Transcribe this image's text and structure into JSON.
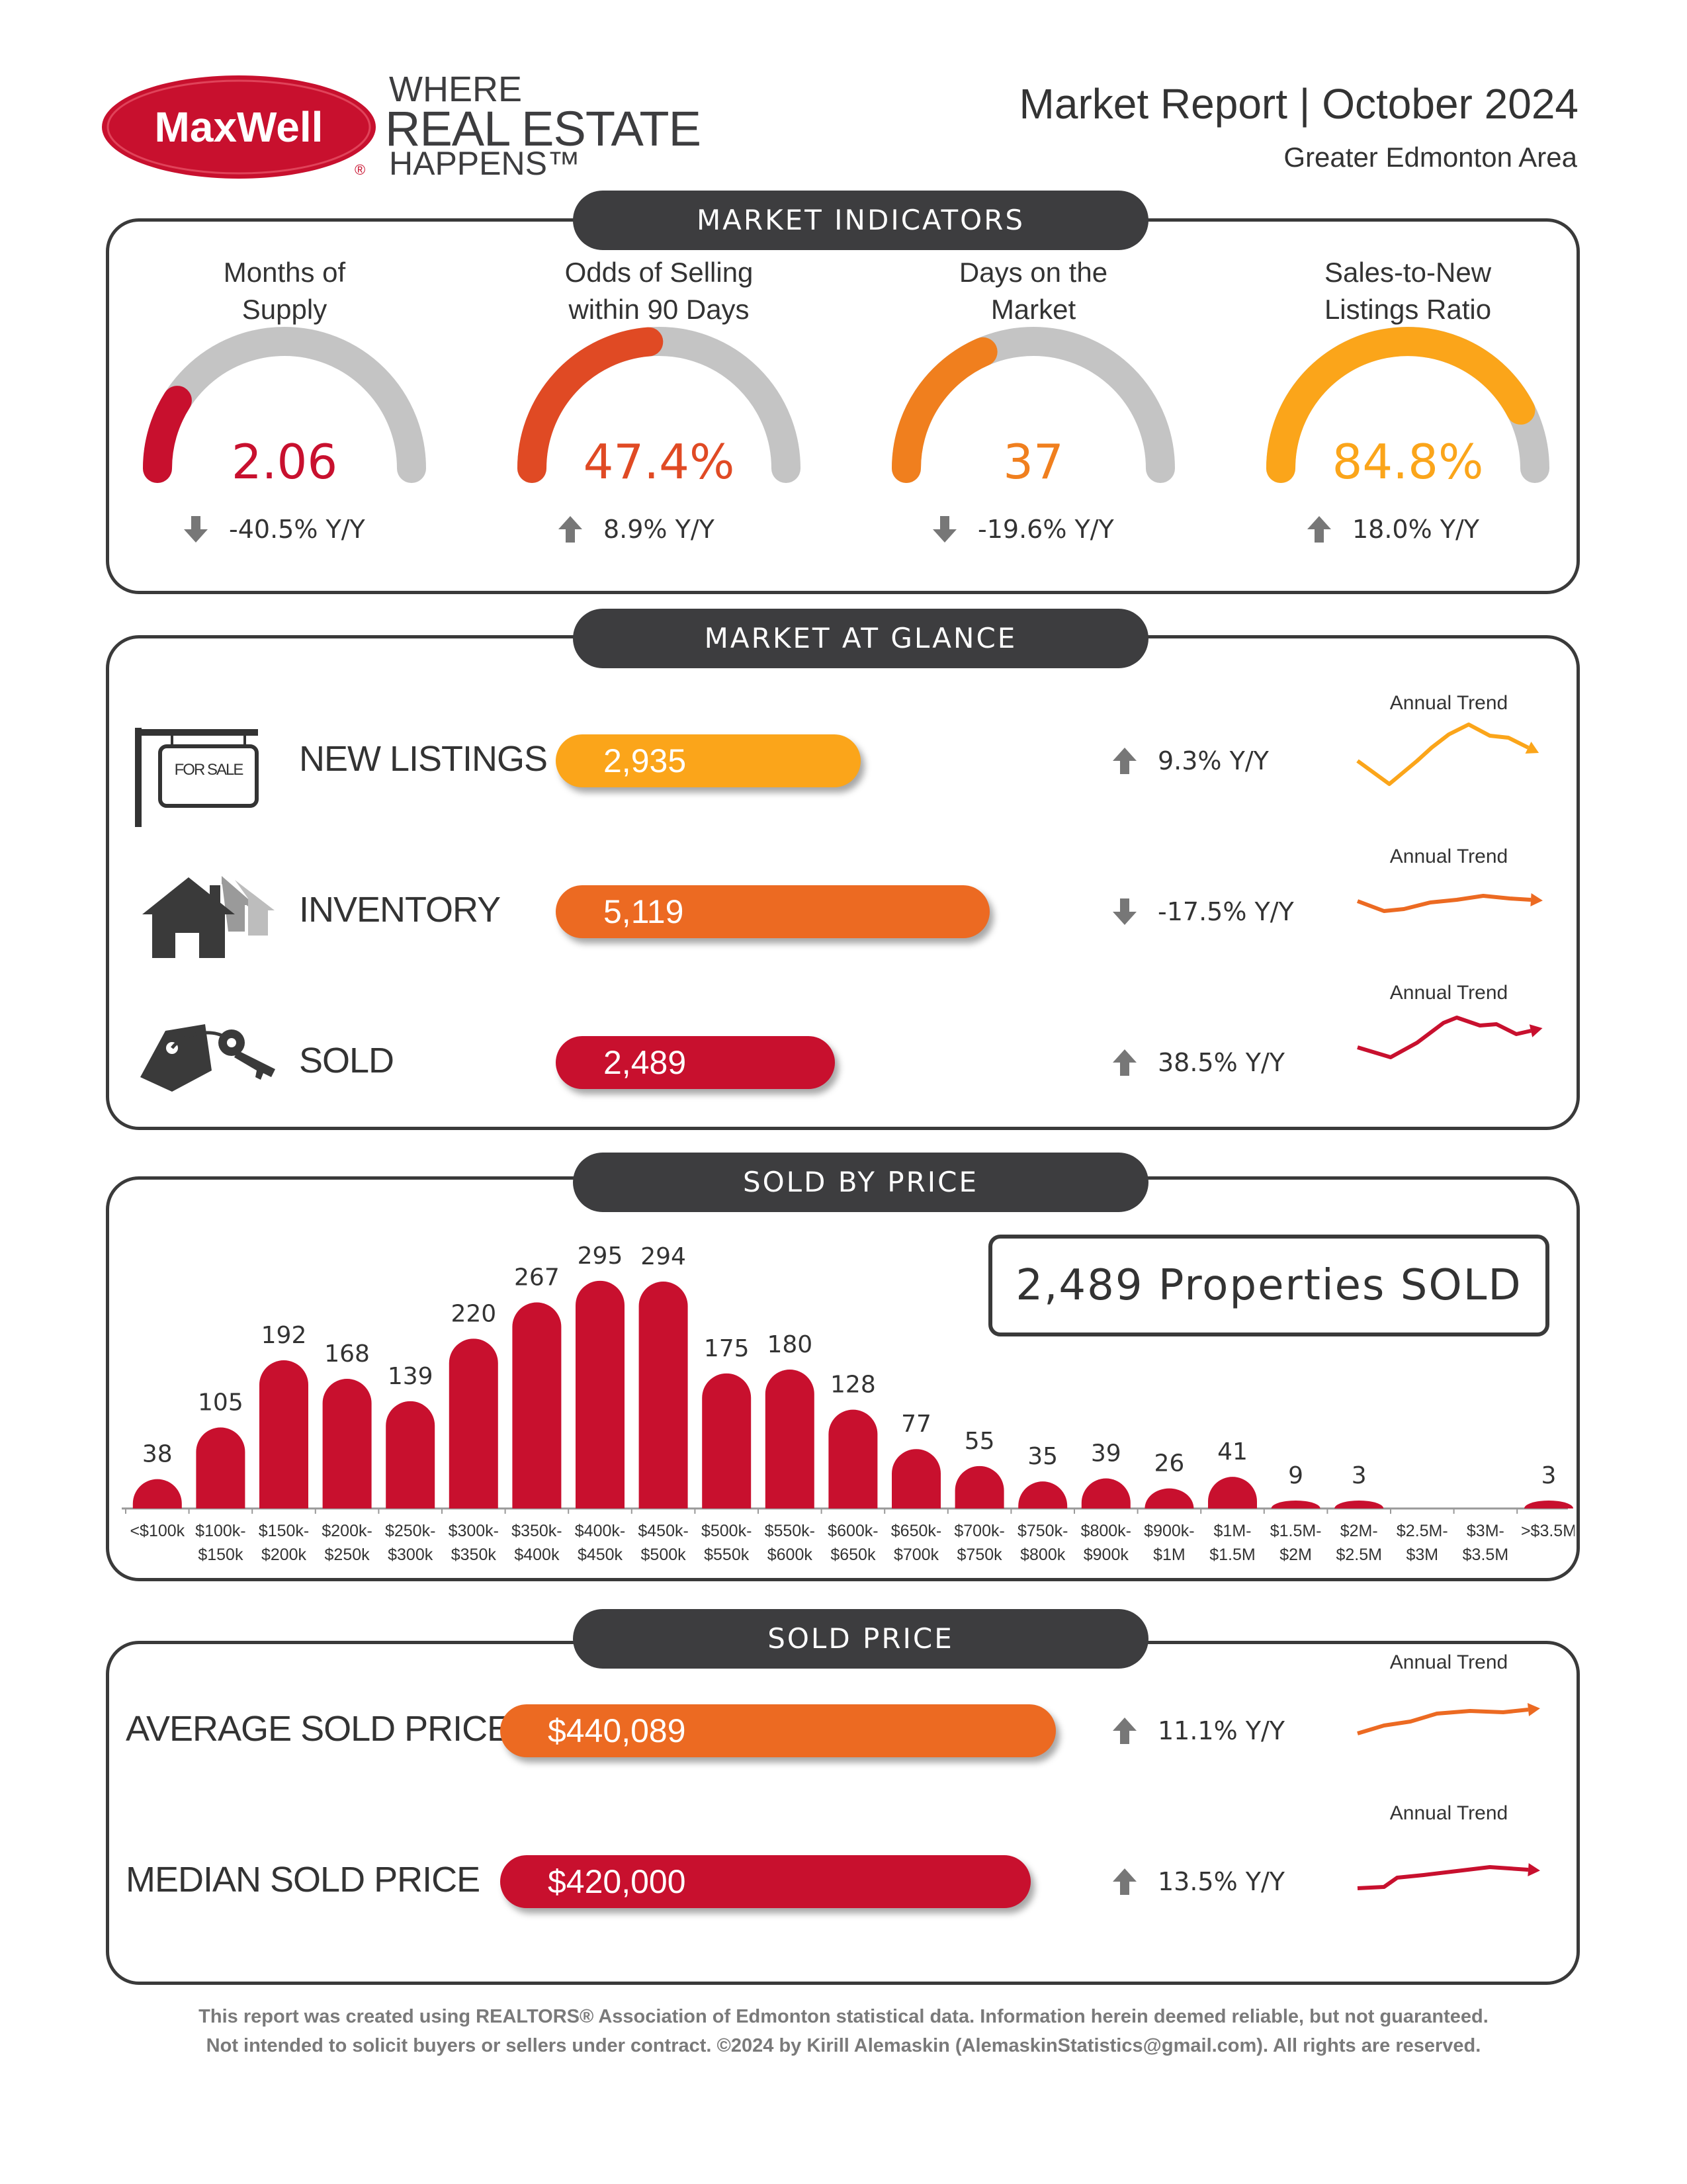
{
  "header": {
    "brand": "MaxWell",
    "tagline_1": "WHERE",
    "tagline_2": "REAL ESTATE",
    "tagline_3": "HAPPENS™",
    "title": "Market Report | October 2024",
    "subtitle": "Greater Edmonton Area"
  },
  "colors": {
    "red": "#c8102e",
    "orange_red": "#e04a24",
    "orange": "#f07f1e",
    "amber": "#fba51a",
    "gray_track": "#c4c4c4",
    "dark": "#3d3d3f"
  },
  "indicators": {
    "title": "MARKET INDICATORS",
    "items": [
      {
        "title_1": "Months of",
        "title_2": "Supply",
        "value": "2.06",
        "fill": 0.18,
        "change": "-40.5% Y/Y",
        "direction": "down",
        "color": "#c8102e"
      },
      {
        "title_1": "Odds of Selling",
        "title_2": "within 90 Days",
        "value": "47.4%",
        "fill": 0.474,
        "change": "8.9% Y/Y",
        "direction": "up",
        "color": "#e04a24"
      },
      {
        "title_1": "Days on the",
        "title_2": "Market",
        "value": "37",
        "fill": 0.37,
        "change": "-19.6% Y/Y",
        "direction": "down",
        "color": "#f07f1e"
      },
      {
        "title_1": "Sales-to-New",
        "title_2": "Listings Ratio",
        "value": "84.8%",
        "fill": 0.848,
        "change": "18.0% Y/Y",
        "direction": "up",
        "color": "#fba51a"
      }
    ]
  },
  "glance": {
    "title": "MARKET AT GLANCE",
    "trend_label": "Annual Trend",
    "for_sale_sign": "FOR SALE",
    "rows": [
      {
        "label": "NEW LISTINGS",
        "value": "2,935",
        "amount": 2935,
        "change": "9.3% Y/Y",
        "direction": "up",
        "color": "#fba51a",
        "icon": "for-sale-sign-icon"
      },
      {
        "label": "INVENTORY",
        "value": "5,119",
        "amount": 5119,
        "change": "-17.5% Y/Y",
        "direction": "down",
        "color": "#ec6a22",
        "icon": "houses-icon"
      },
      {
        "label": "SOLD",
        "value": "2,489",
        "amount": 2489,
        "change": "38.5% Y/Y",
        "direction": "up",
        "color": "#c8102e",
        "icon": "house-keys-icon"
      }
    ]
  },
  "sold_by_price": {
    "title": "SOLD BY PRICE",
    "total_box": "2,489 Properties SOLD"
  },
  "chart_data": {
    "type": "bar",
    "categories": [
      "<$100k",
      "$100k-$150k",
      "$150k-$200k",
      "$200k-$250k",
      "$250k-$300k",
      "$300k-$350k",
      "$350k-$400k",
      "$400k-$450k",
      "$450k-$500k",
      "$500k-$550k",
      "$550k-$600k",
      "$600k-$650k",
      "$650k-$700k",
      "$700k-$750k",
      "$750k-$800k",
      "$800k-$900k",
      "$900k-$1M",
      "$1M-$1.5M",
      "$1.5M-$2M",
      "$2M-$2.5M",
      "$2.5M-$3M",
      "$3M-$3.5M",
      ">$3.5M"
    ],
    "tick_line1": [
      "<$100k",
      "$100k-",
      "$150k-",
      "$200k-",
      "$250k-",
      "$300k-",
      "$350k-",
      "$400k-",
      "$450k-",
      "$500k-",
      "$550k-",
      "$600k-",
      "$650k-",
      "$700k-",
      "$750k-",
      "$800k-",
      "$900k-",
      "$1M-",
      "$1.5M-",
      "$2M-",
      "$2.5M-",
      "$3M-",
      ">$3.5M"
    ],
    "tick_line2": [
      "",
      "$150k",
      "$200k",
      "$250k",
      "$300k",
      "$350k",
      "$400k",
      "$450k",
      "$500k",
      "$550k",
      "$600k",
      "$650k",
      "$700k",
      "$750k",
      "$800k",
      "$900k",
      "$1M",
      "$1.5M",
      "$2M",
      "$2.5M",
      "$3M",
      "$3.5M",
      ""
    ],
    "values": [
      38,
      105,
      192,
      168,
      139,
      220,
      267,
      295,
      294,
      175,
      180,
      128,
      77,
      55,
      35,
      39,
      26,
      41,
      9,
      3,
      null,
      null,
      3
    ],
    "title": "",
    "xlabel": "",
    "ylabel": "",
    "ylim": [
      0,
      300
    ],
    "grid": false,
    "color": "#c8102e"
  },
  "sold_price": {
    "title": "SOLD PRICE",
    "trend_label": "Annual Trend",
    "rows": [
      {
        "label": "AVERAGE SOLD PRICE",
        "value": "$440,089",
        "amount": 440089,
        "change": "11.1% Y/Y",
        "direction": "up",
        "color": "#ec6a22"
      },
      {
        "label": "MEDIAN SOLD PRICE",
        "value": "$420,000",
        "amount": 420000,
        "change": "13.5% Y/Y",
        "direction": "up",
        "color": "#c8102e"
      }
    ]
  },
  "footer": {
    "line1": "This report was created using REALTORS® Association of Edmonton statistical data. Information herein deemed reliable, but not guaranteed.",
    "line2": "Not intended to solicit buyers or sellers under contract. ©2024 by Kirill Alemaskin (AlemaskinStatistics@gmail.com). All rights are reserved."
  }
}
